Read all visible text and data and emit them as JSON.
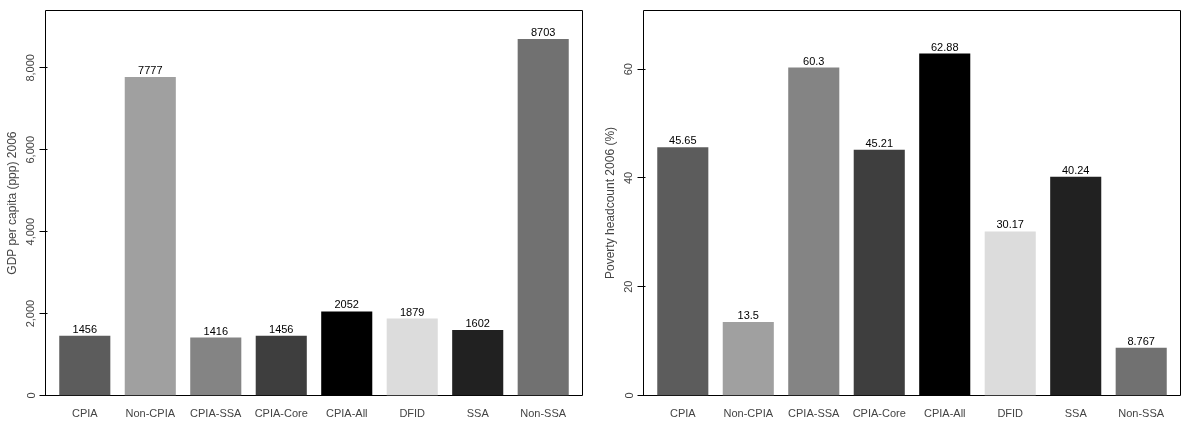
{
  "chart_data": [
    {
      "type": "bar",
      "ylabel": "GDP per capita (ppp) 2006",
      "categories": [
        "CPIA",
        "Non-CPIA",
        "CPIA-SSA",
        "CPIA-Core",
        "CPIA-All",
        "DFID",
        "SSA",
        "Non-SSA"
      ],
      "values": [
        1456,
        7777,
        1416,
        1456,
        2052,
        1879,
        1602,
        8703
      ],
      "colors": [
        "#5c5c5c",
        "#a0a0a0",
        "#848484",
        "#3e3e3e",
        "#000000",
        "#dcdcdc",
        "#212121",
        "#717171"
      ],
      "ylim": [
        0,
        9400
      ],
      "yticks": [
        0,
        {
          "value": 2000,
          "label": "2,000"
        },
        {
          "value": 4000,
          "label": "4,000"
        },
        {
          "value": 6000,
          "label": "6,000"
        },
        {
          "value": 8000,
          "label": "8,000"
        }
      ],
      "data_labels": true
    },
    {
      "type": "bar",
      "ylabel": "Poverty headcount 2006 (%)",
      "categories": [
        "CPIA",
        "Non-CPIA",
        "CPIA-SSA",
        "CPIA-Core",
        "CPIA-All",
        "DFID",
        "SSA",
        "Non-SSA"
      ],
      "values": [
        45.65,
        13.5,
        60.3,
        45.21,
        62.88,
        30.17,
        40.24,
        8.767
      ],
      "colors": [
        "#5c5c5c",
        "#a0a0a0",
        "#848484",
        "#3e3e3e",
        "#000000",
        "#dcdcdc",
        "#212121",
        "#717171"
      ],
      "ylim": [
        0,
        70.8
      ],
      "yticks": [
        0,
        20,
        40,
        60
      ],
      "data_labels": true
    }
  ]
}
